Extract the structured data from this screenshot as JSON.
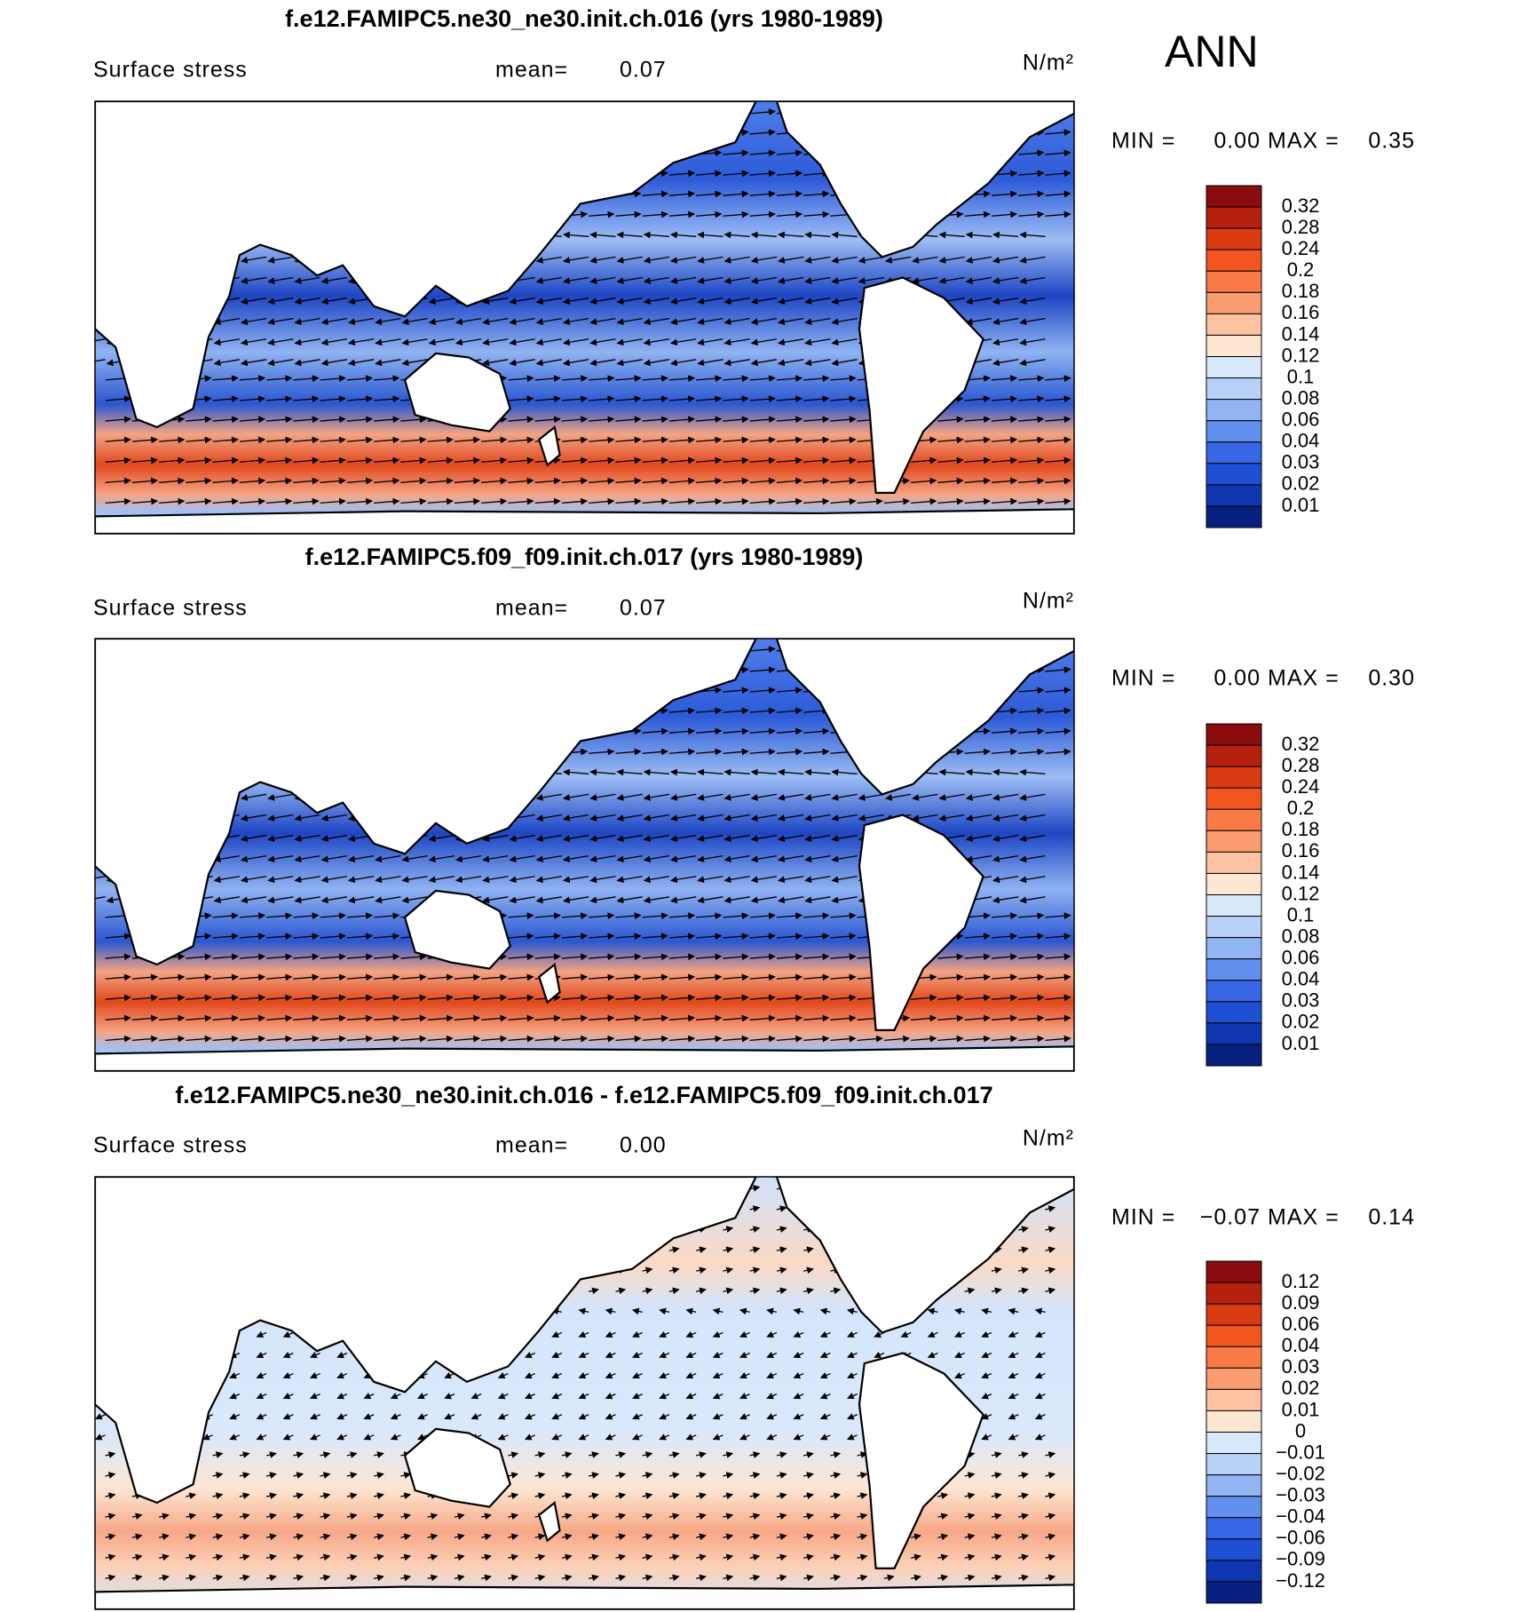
{
  "header": {
    "season": "ANN"
  },
  "panels": [
    {
      "title": "f.e12.FAMIPC5.ne30_ne30.init.ch.016 (yrs 1980-1989)",
      "field": "Surface stress",
      "mean_label": "mean=",
      "mean": 0.07,
      "units": "N/m²",
      "min_label": "MIN =",
      "min": {
        "value": 0,
        "label": "0.00"
      },
      "max_label": "MAX =",
      "max": 0.35,
      "colorbar": {
        "levels": [
          0.32,
          0.28,
          0.24,
          0.2,
          0.18,
          0.16,
          0.14,
          0.12,
          0.1,
          0.08,
          0.06,
          0.04,
          0.03,
          0.02,
          0.01
        ],
        "colors": [
          "#8a0c0c",
          "#b5200f",
          "#d93a10",
          "#f4551f",
          "#f97a44",
          "#fb9c70",
          "#fcc2a2",
          "#fde6d2",
          "#d8e8fb",
          "#b8d1f7",
          "#90b5f2",
          "#6290ee",
          "#3767e6",
          "#1f4fd2",
          "#0e36b0",
          "#05207e"
        ]
      }
    },
    {
      "title": "f.e12.FAMIPC5.f09_f09.init.ch.017 (yrs 1980-1989)",
      "field": "Surface stress",
      "mean_label": "mean=",
      "mean": 0.07,
      "units": "N/m²",
      "min_label": "MIN =",
      "min": {
        "value": 0,
        "label": "0.00"
      },
      "max_label": "MAX =",
      "max": {
        "value": 0.3,
        "label": "0.30"
      },
      "colorbar": {
        "levels": [
          0.32,
          0.28,
          0.24,
          0.2,
          0.18,
          0.16,
          0.14,
          0.12,
          0.1,
          0.08,
          0.06,
          0.04,
          0.03,
          0.02,
          0.01
        ],
        "colors": [
          "#8a0c0c",
          "#b5200f",
          "#d93a10",
          "#f4551f",
          "#f97a44",
          "#fb9c70",
          "#fcc2a2",
          "#fde6d2",
          "#d8e8fb",
          "#b8d1f7",
          "#90b5f2",
          "#6290ee",
          "#3767e6",
          "#1f4fd2",
          "#0e36b0",
          "#05207e"
        ]
      }
    },
    {
      "title": "f.e12.FAMIPC5.ne30_ne30.init.ch.016 - f.e12.FAMIPC5.f09_f09.init.ch.017",
      "field": "Surface stress",
      "mean_label": "mean=",
      "mean": {
        "value": 0,
        "label": "0.00"
      },
      "units": "N/m²",
      "min_label": "MIN =",
      "min": {
        "value": -0.07,
        "label": "−0.07"
      },
      "max_label": "MAX =",
      "max": 0.14,
      "colorbar": {
        "levels": [
          0.12,
          0.09,
          0.06,
          0.04,
          0.03,
          0.02,
          0.01,
          0,
          {
            "value": -0.01,
            "label": "−0.01"
          },
          {
            "value": -0.02,
            "label": "−0.02"
          },
          {
            "value": -0.03,
            "label": "−0.03"
          },
          {
            "value": -0.04,
            "label": "−0.04"
          },
          {
            "value": -0.06,
            "label": "−0.06"
          },
          {
            "value": -0.09,
            "label": "−0.09"
          },
          {
            "value": -0.12,
            "label": "−0.12"
          }
        ],
        "colors": [
          "#8a0c0c",
          "#b5200f",
          "#d93a10",
          "#f4551f",
          "#f97a44",
          "#fb9c70",
          "#fcc2a2",
          "#fde6d2",
          "#d8e8fb",
          "#b8d1f7",
          "#90b5f2",
          "#6290ee",
          "#3767e6",
          "#1f4fd2",
          "#0e36b0",
          "#05207e"
        ]
      }
    }
  ]
}
